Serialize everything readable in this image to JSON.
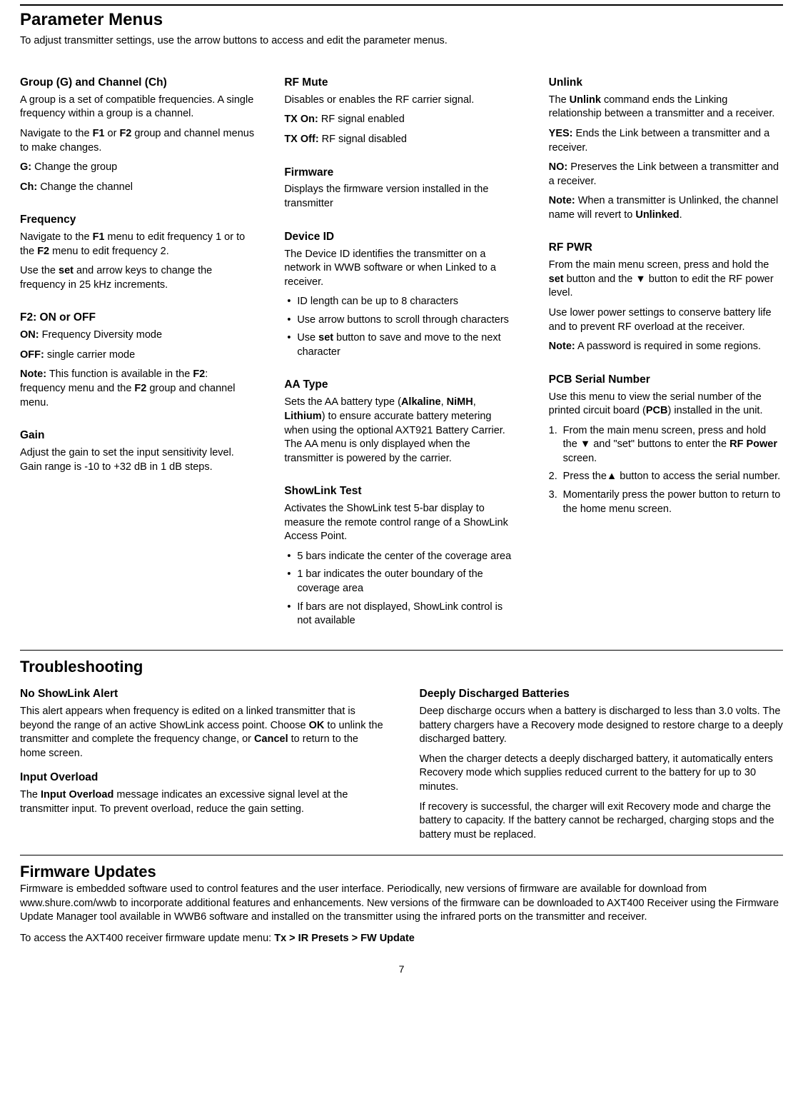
{
  "page": {
    "title": "Parameter Menus",
    "intro": "To adjust transmitter settings, use the arrow buttons to access and edit the parameter menus.",
    "number": "7"
  },
  "col1": {
    "group": {
      "heading": "Group (G) and Channel (Ch)",
      "p1": "A group is a set of compatible frequencies. A single frequency within a group is a channel.",
      "p2a": "Navigate to the ",
      "p2b": "F1",
      "p2c": " or ",
      "p2d": "F2",
      "p2e": " group and channel menus to make changes.",
      "g_b": "G:",
      "g_t": " Change the group",
      "ch_b": "Ch:",
      "ch_t": " Change the channel"
    },
    "freq": {
      "heading": "Frequency",
      "p1a": "Navigate to the ",
      "p1b": "F1",
      "p1c": " menu to edit frequency 1 or to the ",
      "p1d": "F2",
      "p1e": " menu to edit frequency 2.",
      "p2a": "Use the ",
      "p2b": "set",
      "p2c": " and arrow keys to change the frequency in 25 kHz increments."
    },
    "f2": {
      "heading": "F2: ON or OFF",
      "on_b": "ON:",
      "on_t": " Frequency Diversity mode",
      "off_b": "OFF:",
      "off_t": " single carrier mode",
      "note_b": "Note:",
      "note_t1": " This function is available in the ",
      "note_t2": "F2",
      "note_t3": ": frequency menu and the ",
      "note_t4": "F2",
      "note_t5": " group and channel menu."
    },
    "gain": {
      "heading": "Gain",
      "p1": "Adjust the gain to set the input sensitivity level. Gain range is -10 to +32 dB in 1 dB steps."
    }
  },
  "col2": {
    "rfmute": {
      "heading": "RF Mute",
      "p1": "Disables or enables the RF carrier signal.",
      "on_b": "TX On:",
      "on_t": " RF signal enabled",
      "off_b": "TX Off:",
      "off_t": " RF signal disabled"
    },
    "firmware": {
      "heading": "Firmware",
      "p1": "Displays the firmware version installed in the transmitter"
    },
    "device": {
      "heading": "Device ID",
      "p1": "The Device ID identifies the transmitter on a network in WWB software or when Linked to a receiver.",
      "li1": "ID length can be up to 8 characters",
      "li2": "Use arrow buttons to scroll through characters",
      "li3a": "Use ",
      "li3b": "set",
      "li3c": " button to save and move to the next character"
    },
    "aatype": {
      "heading": "AA Type",
      "p1a": "Sets the AA battery type (",
      "p1b": "Alkaline",
      "p1c": ", ",
      "p1d": "NiMH",
      "p1e": ", ",
      "p1f": "Lithium",
      "p1g": ") to ensure accurate battery metering when using the optional AXT921 Battery Carrier. The AA menu is only displayed when the transmitter is powered by the carrier."
    },
    "showlink": {
      "heading": "ShowLink Test",
      "p1": "Activates the ShowLink test 5-bar display to measure the remote control range of a ShowLink Access Point.",
      "li1": "5 bars indicate the center of the coverage area",
      "li2": "1 bar indicates the outer boundary of the coverage area",
      "li3": "If bars are not displayed, ShowLink control is not available"
    }
  },
  "col3": {
    "unlink": {
      "heading": "Unlink",
      "p1a": "The ",
      "p1b": "Unlink",
      "p1c": " command ends the Linking relationship between a transmitter and a receiver.",
      "yes_b": "YES:",
      "yes_t": " Ends the Link between a transmitter and a receiver.",
      "no_b": "NO:",
      "no_t": " Preserves the Link between a transmitter and a receiver.",
      "note_b": "Note:",
      "note_t1": " When a transmitter is Unlinked, the channel name will revert to ",
      "note_t2": "Unlinked",
      "note_t3": "."
    },
    "rfpwr": {
      "heading": "RF PWR",
      "p1a": "From the main menu screen, press and hold the ",
      "p1b": "set",
      "p1c": " button and  the ▼ button to edit the RF power level.",
      "p2": "Use lower power settings to conserve battery life and to prevent RF overload at the receiver.",
      "note_b": "Note:",
      "note_t": " A password is required in some regions."
    },
    "pcb": {
      "heading": "PCB Serial Number",
      "p1a": "Use this menu to view the serial number of the printed circuit board (",
      "p1b": "PCB",
      "p1c": ") installed in the unit.",
      "li1a": "From the main menu screen, press and hold the ▼ and \"set\" buttons to enter the ",
      "li1b": "RF Power",
      "li1c": " screen.",
      "li2": "Press the▲ button to access the serial number.",
      "li3": "Momentarily press the power button to return to the home menu screen."
    }
  },
  "troubleshooting": {
    "title": "Troubleshooting",
    "left": {
      "noshow": {
        "heading": "No ShowLink Alert",
        "p1a": "This alert appears when frequency is edited on a linked transmitter that is beyond the range of an active ShowLink access point. Choose ",
        "p1b": "OK",
        "p1c": " to unlink the transmitter and complete the frequency change, or ",
        "p1d": "Cancel",
        "p1e": " to return to the home screen."
      },
      "overload": {
        "heading": "Input Overload",
        "p1a": "The ",
        "p1b": "Input Overload",
        "p1c": " message indicates an excessive signal level at the transmitter input. To prevent overload, reduce the gain setting."
      }
    },
    "right": {
      "heading": "Deeply Discharged Batteries",
      "p1": "Deep discharge occurs when a battery is discharged to less than 3.0 volts. The battery chargers have a Recovery mode designed to restore charge to a deeply discharged battery.",
      "p2": "When the charger detects a deeply discharged battery, it automatically enters Recovery mode which supplies reduced current to the battery for up to 30 minutes.",
      "p3": "If recovery is successful, the charger will exit Recovery mode and charge the battery to capacity. If the battery cannot be recharged, charging stops and the battery must be replaced."
    }
  },
  "firmware_updates": {
    "title": "Firmware Updates",
    "p1": "Firmware is embedded software used to control features and the user interface. Periodically, new versions of firmware are available for download from www.shure.com/wwb to incorporate additional features and enhancements. New versions of the firmware can be downloaded to AXT400 Receiver using the Firmware Update Manager tool available in WWB6 software and installed on the transmitter using the infrared ports on the transmitter and receiver.",
    "p2a": "To access the AXT400 receiver firmware update menu: ",
    "p2b": "Tx > IR Presets > FW Update"
  }
}
